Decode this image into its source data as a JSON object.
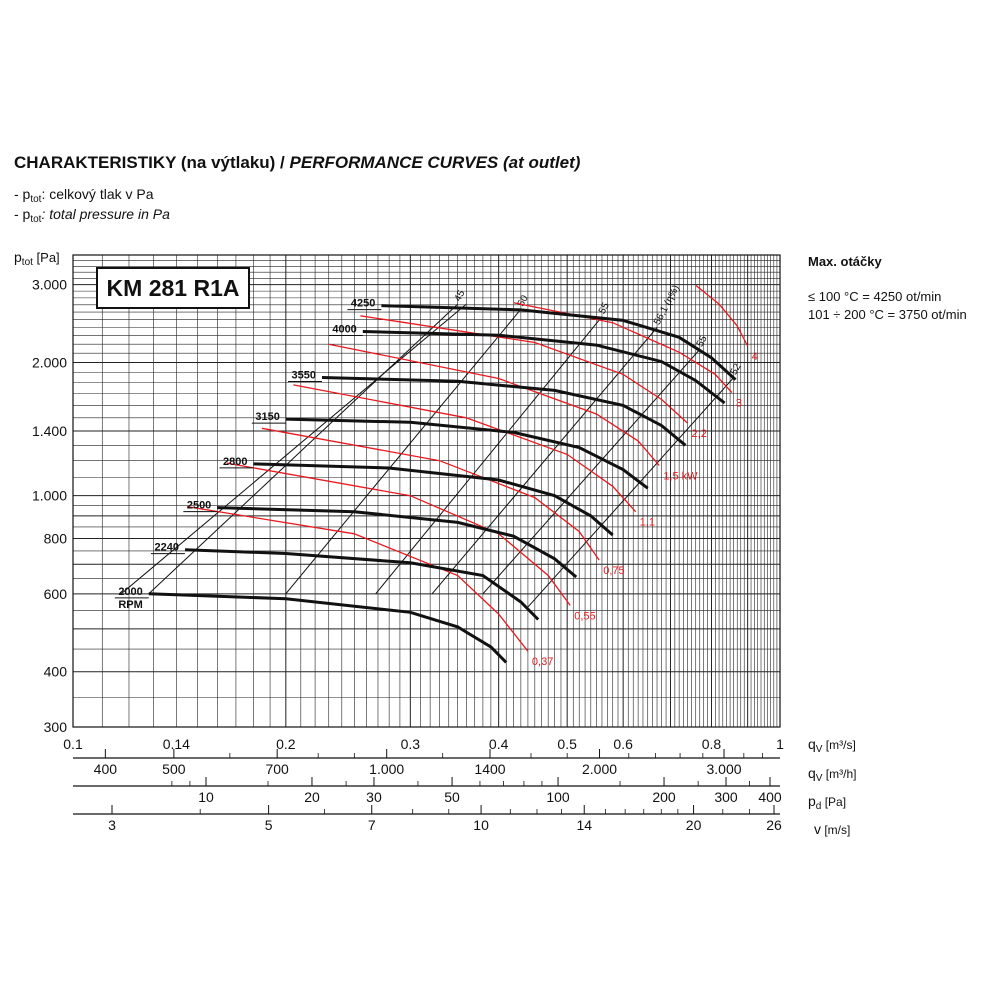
{
  "header": {
    "title_bold": "CHARAKTERISTIKY (na výtlaku) / ",
    "title_italic": "PERFORMANCE CURVES (at outlet)",
    "line1_prefix": "- p",
    "line1_sub": "tot",
    "line1_text": ": celkový tlak v Pa",
    "line2_prefix": "- p",
    "line2_sub": "tot",
    "line2_text": ": total pressure in Pa"
  },
  "max_rpm": {
    "title": "Max. otáčky",
    "line1": "≤ 100 °C = 4250 ot/min",
    "line2": "101 ÷ 200 °C = 3750 ot/min"
  },
  "colors": {
    "curve": "#111111",
    "power": "#e8191e",
    "grid": "#222222"
  },
  "chart_data": {
    "type": "line",
    "model": "KM 281 R1A",
    "scale": "log-log",
    "xlim": [
      0.1,
      1.0
    ],
    "ylim": [
      300,
      3500
    ],
    "ylabel": "p",
    "ylabel_sub": "tot",
    "ylabel_unit": " [Pa]",
    "xlabel": "q",
    "xlabel_sub": "V",
    "xlabel_unit": " [m³/s]",
    "y_ticks": [
      "3.000",
      "2.000",
      "1.400",
      "1.000",
      "800",
      "600",
      "400",
      "300"
    ],
    "y_tick_values": [
      3000,
      2000,
      1400,
      1000,
      800,
      600,
      400,
      300
    ],
    "x_ticks": [
      "0.1",
      "0.14",
      "0.2",
      "0.3",
      "0.4",
      "0.5",
      "0.6",
      "0.8",
      "1"
    ],
    "x_tick_values": [
      0.1,
      0.14,
      0.2,
      0.3,
      0.4,
      0.5,
      0.6,
      0.8,
      1.0
    ],
    "scale_m3h": {
      "label": "q",
      "sub": "V",
      "unit": " [m³/h]",
      "ticks": [
        "400",
        "500",
        "700",
        "1.000",
        "1400",
        "2.000",
        "3.000"
      ],
      "values": [
        400,
        500,
        700,
        1000,
        1400,
        2000,
        3000
      ]
    },
    "scale_pd": {
      "label": "p",
      "sub": "d",
      "unit": " [Pa]",
      "ticks": [
        "10",
        "20",
        "30",
        "50",
        "100",
        "200",
        "300",
        "400"
      ],
      "values": [
        10,
        20,
        30,
        50,
        100,
        200,
        300,
        400
      ]
    },
    "scale_v": {
      "label": "v",
      "unit": " [m/s]",
      "ticks": [
        "3",
        "5",
        "7",
        "10",
        "14",
        "20",
        "26"
      ],
      "values": [
        3,
        5,
        7,
        10,
        14,
        20,
        26
      ]
    },
    "rpm_curves": [
      {
        "label": "2000",
        "extra": "RPM",
        "points": [
          [
            0.128,
            600
          ],
          [
            0.2,
            585
          ],
          [
            0.3,
            545
          ],
          [
            0.35,
            505
          ],
          [
            0.39,
            455
          ],
          [
            0.41,
            420
          ]
        ]
      },
      {
        "label": "2240",
        "points": [
          [
            0.144,
            755
          ],
          [
            0.2,
            740
          ],
          [
            0.3,
            705
          ],
          [
            0.38,
            660
          ],
          [
            0.43,
            575
          ],
          [
            0.455,
            525
          ]
        ]
      },
      {
        "label": "2500",
        "points": [
          [
            0.16,
            940
          ],
          [
            0.25,
            920
          ],
          [
            0.35,
            870
          ],
          [
            0.42,
            810
          ],
          [
            0.48,
            720
          ],
          [
            0.515,
            655
          ]
        ]
      },
      {
        "label": "2800",
        "points": [
          [
            0.18,
            1180
          ],
          [
            0.28,
            1155
          ],
          [
            0.4,
            1085
          ],
          [
            0.48,
            1000
          ],
          [
            0.54,
            900
          ],
          [
            0.58,
            815
          ]
        ]
      },
      {
        "label": "3150",
        "points": [
          [
            0.2,
            1490
          ],
          [
            0.3,
            1465
          ],
          [
            0.42,
            1390
          ],
          [
            0.52,
            1285
          ],
          [
            0.6,
            1145
          ],
          [
            0.65,
            1040
          ]
        ]
      },
      {
        "label": "3550",
        "points": [
          [
            0.225,
            1850
          ],
          [
            0.35,
            1815
          ],
          [
            0.48,
            1730
          ],
          [
            0.6,
            1600
          ],
          [
            0.68,
            1440
          ],
          [
            0.735,
            1300
          ]
        ]
      },
      {
        "label": "4000",
        "points": [
          [
            0.257,
            2350
          ],
          [
            0.4,
            2305
          ],
          [
            0.55,
            2190
          ],
          [
            0.68,
            2010
          ],
          [
            0.76,
            1820
          ],
          [
            0.835,
            1620
          ]
        ]
      },
      {
        "label": "4250",
        "points": [
          [
            0.273,
            2690
          ],
          [
            0.43,
            2630
          ],
          [
            0.6,
            2490
          ],
          [
            0.72,
            2280
          ],
          [
            0.8,
            2050
          ],
          [
            0.865,
            1830
          ]
        ]
      }
    ],
    "efficiency_lines": [
      {
        "label": "45",
        "points": [
          [
            0.128,
            600
          ],
          [
            0.35,
            2710
          ]
        ]
      },
      {
        "label": "50",
        "points": [
          [
            0.2,
            600
          ],
          [
            0.43,
            2640
          ]
        ]
      },
      {
        "label": "55",
        "points": [
          [
            0.268,
            600
          ],
          [
            0.56,
            2540
          ]
        ]
      },
      {
        "label": "56,1 (η%)",
        "points": [
          [
            0.322,
            600
          ],
          [
            0.67,
            2400
          ]
        ]
      },
      {
        "label": "55",
        "points": [
          [
            0.38,
            600
          ],
          [
            0.77,
            2140
          ]
        ]
      },
      {
        "label": "52",
        "points": [
          [
            0.44,
            560
          ],
          [
            0.86,
            1850
          ]
        ]
      }
    ],
    "power_curves": [
      {
        "label": "0,37",
        "points": [
          [
            0.145,
            945
          ],
          [
            0.25,
            820
          ],
          [
            0.35,
            660
          ],
          [
            0.4,
            540
          ],
          [
            0.44,
            445
          ]
        ]
      },
      {
        "label": "0,55",
        "points": [
          [
            0.165,
            1185
          ],
          [
            0.3,
            1000
          ],
          [
            0.4,
            820
          ],
          [
            0.47,
            660
          ],
          [
            0.505,
            565
          ]
        ]
      },
      {
        "label": "0,75",
        "points": [
          [
            0.185,
            1420
          ],
          [
            0.33,
            1200
          ],
          [
            0.45,
            990
          ],
          [
            0.52,
            830
          ],
          [
            0.555,
            715
          ]
        ]
      },
      {
        "label": "1,1",
        "points": [
          [
            0.205,
            1780
          ],
          [
            0.36,
            1500
          ],
          [
            0.5,
            1240
          ],
          [
            0.58,
            1050
          ],
          [
            0.625,
            920
          ]
        ]
      },
      {
        "label": "1,5 kW",
        "points": [
          [
            0.23,
            2200
          ],
          [
            0.4,
            1840
          ],
          [
            0.55,
            1530
          ],
          [
            0.63,
            1330
          ],
          [
            0.675,
            1170
          ]
        ]
      },
      {
        "label": "2,2",
        "points": [
          [
            0.255,
            2550
          ],
          [
            0.45,
            2220
          ],
          [
            0.6,
            1880
          ],
          [
            0.68,
            1650
          ],
          [
            0.74,
            1460
          ]
        ]
      },
      {
        "label": "3",
        "points": [
          [
            0.42,
            2730
          ],
          [
            0.58,
            2460
          ],
          [
            0.72,
            2110
          ],
          [
            0.81,
            1880
          ],
          [
            0.855,
            1710
          ]
        ]
      },
      {
        "label": "4",
        "points": [
          [
            0.76,
            2990
          ],
          [
            0.82,
            2710
          ],
          [
            0.87,
            2420
          ],
          [
            0.9,
            2180
          ]
        ]
      }
    ]
  }
}
